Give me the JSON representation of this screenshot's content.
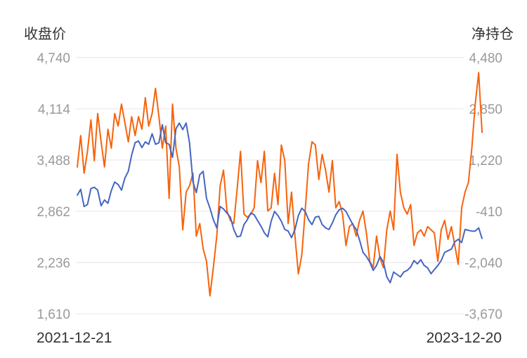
{
  "chart_data": {
    "type": "line",
    "left_axis_title": "收盘价",
    "right_axis_title": "净持仓",
    "left_ticks": [
      "4,740",
      "4,114",
      "3,488",
      "2,862",
      "2,236",
      "1,610"
    ],
    "right_ticks": [
      "4,480",
      "2,850",
      "1,220",
      "-410",
      "-2,040",
      "-3,670"
    ],
    "left_range": [
      1610,
      4740
    ],
    "right_range": [
      -3670,
      4480
    ],
    "x_start_label": "2021-12-21",
    "x_end_label": "2023-12-20",
    "grid": true,
    "colors": {
      "close_price": "#4565c2",
      "net_position": "#f7630c"
    },
    "series": [
      {
        "key": "close_price",
        "axis": "left",
        "values": [
          3060,
          3130,
          2920,
          2945,
          3140,
          3155,
          3120,
          2930,
          3000,
          2960,
          3115,
          3220,
          3190,
          3120,
          3270,
          3350,
          3550,
          3700,
          3720,
          3640,
          3710,
          3680,
          3810,
          3680,
          3700,
          3920,
          3700,
          3680,
          3520,
          3870,
          3940,
          3860,
          3940,
          3700,
          3220,
          3090,
          3310,
          3350,
          3020,
          2900,
          2760,
          2660,
          2920,
          2890,
          2840,
          2790,
          2640,
          2550,
          2560,
          2700,
          2760,
          2840,
          2820,
          2750,
          2680,
          2600,
          2550,
          2740,
          2860,
          2810,
          2740,
          2640,
          2620,
          2540,
          2640,
          2810,
          2900,
          2860,
          2760,
          2700,
          2790,
          2800,
          2700,
          2660,
          2640,
          2720,
          2820,
          2880,
          2900,
          2860,
          2780,
          2700,
          2640,
          2510,
          2360,
          2310,
          2240,
          2140,
          2200,
          2310,
          2240,
          2060,
          1990,
          2120,
          2090,
          2060,
          2120,
          2140,
          2180,
          2260,
          2220,
          2270,
          2200,
          2170,
          2100,
          2150,
          2200,
          2260,
          2360,
          2380,
          2400,
          2490,
          2520,
          2480,
          2640,
          2630,
          2620,
          2620,
          2660,
          2530
        ]
      },
      {
        "key": "net_position",
        "axis": "right",
        "values": [
          1000,
          2000,
          800,
          1500,
          2500,
          1200,
          2700,
          1800,
          1000,
          2200,
          1600,
          2700,
          2300,
          3000,
          2400,
          1800,
          2600,
          2000,
          2600,
          2200,
          3200,
          2300,
          2700,
          3500,
          2600,
          1600,
          2300,
          0,
          3000,
          1600,
          1000,
          -1000,
          200,
          400,
          800,
          -1200,
          -800,
          -1600,
          -2000,
          -3100,
          -2200,
          -1200,
          400,
          900,
          -400,
          -700,
          -800,
          300,
          1500,
          -500,
          -600,
          -500,
          -300,
          1200,
          500,
          1500,
          -400,
          -300,
          800,
          -200,
          1700,
          1200,
          -800,
          200,
          -1200,
          -2400,
          -1800,
          -400,
          1100,
          1800,
          1700,
          600,
          1400,
          900,
          200,
          1200,
          -300,
          -100,
          -500,
          -1500,
          -900,
          -800,
          -1200,
          -700,
          -400,
          -1100,
          -2000,
          -2200,
          -1200,
          -1900,
          -2200,
          -1000,
          -400,
          -1000,
          1400,
          200,
          -300,
          -500,
          -200,
          -1500,
          -1100,
          -1000,
          -1200,
          -900,
          -1000,
          -1100,
          -2000,
          -1000,
          -700,
          -1300,
          -900,
          -1500,
          -2100,
          -300,
          200,
          500,
          1600,
          3000,
          4000,
          2100
        ]
      }
    ]
  }
}
